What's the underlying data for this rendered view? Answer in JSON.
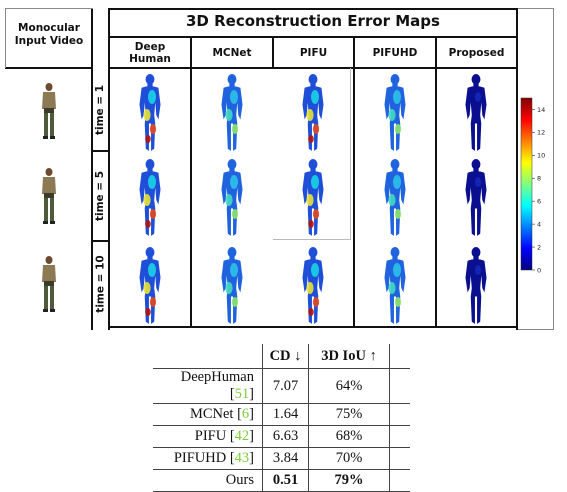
{
  "figure": {
    "title": "3D Reconstruction Error Maps",
    "left_header": [
      "Monocular",
      "Input Video"
    ],
    "methods": [
      {
        "label_lines": [
          "Deep",
          "Human"
        ],
        "style": "high"
      },
      {
        "label_lines": [
          "MCNet"
        ],
        "style": "mid"
      },
      {
        "label_lines": [
          "PIFU"
        ],
        "style": "high"
      },
      {
        "label_lines": [
          "PIFUHD"
        ],
        "style": "mid"
      },
      {
        "label_lines": [
          "Proposed"
        ],
        "style": "low"
      }
    ],
    "rows": [
      {
        "label": "time = 1"
      },
      {
        "label": "time = 5"
      },
      {
        "label": "time = 10"
      }
    ],
    "colorbar": {
      "ticks": [
        "14",
        "12",
        "10",
        "8",
        "6",
        "4",
        "2",
        "0"
      ],
      "tick_values": [
        14,
        12,
        10,
        8,
        6,
        4,
        2,
        0
      ],
      "min": 0,
      "max": 15,
      "colors": [
        "#00007f",
        "#0000ff",
        "#007fff",
        "#00ffff",
        "#7fff7f",
        "#ffff00",
        "#ff7f00",
        "#ff0000",
        "#7f0000"
      ]
    }
  },
  "table": {
    "header": {
      "cd": "CD ↓",
      "iou": "3D IoU ↑"
    },
    "rows": [
      {
        "name": "DeepHuman [",
        "ref": "51",
        "tail": "]",
        "cd": "7.07",
        "iou": "64%"
      },
      {
        "name": "MCNet [",
        "ref": "6",
        "tail": "]",
        "cd": "1.64",
        "iou": "75%"
      },
      {
        "name": "PIFU [",
        "ref": "42",
        "tail": "]",
        "cd": "6.63",
        "iou": "68%"
      },
      {
        "name": "PIFUHD [",
        "ref": "43",
        "tail": "]",
        "cd": "3.84",
        "iou": "70%"
      },
      {
        "name": "Ours",
        "ref": "",
        "tail": "",
        "cd": "0.51",
        "iou": "79%"
      }
    ]
  }
}
